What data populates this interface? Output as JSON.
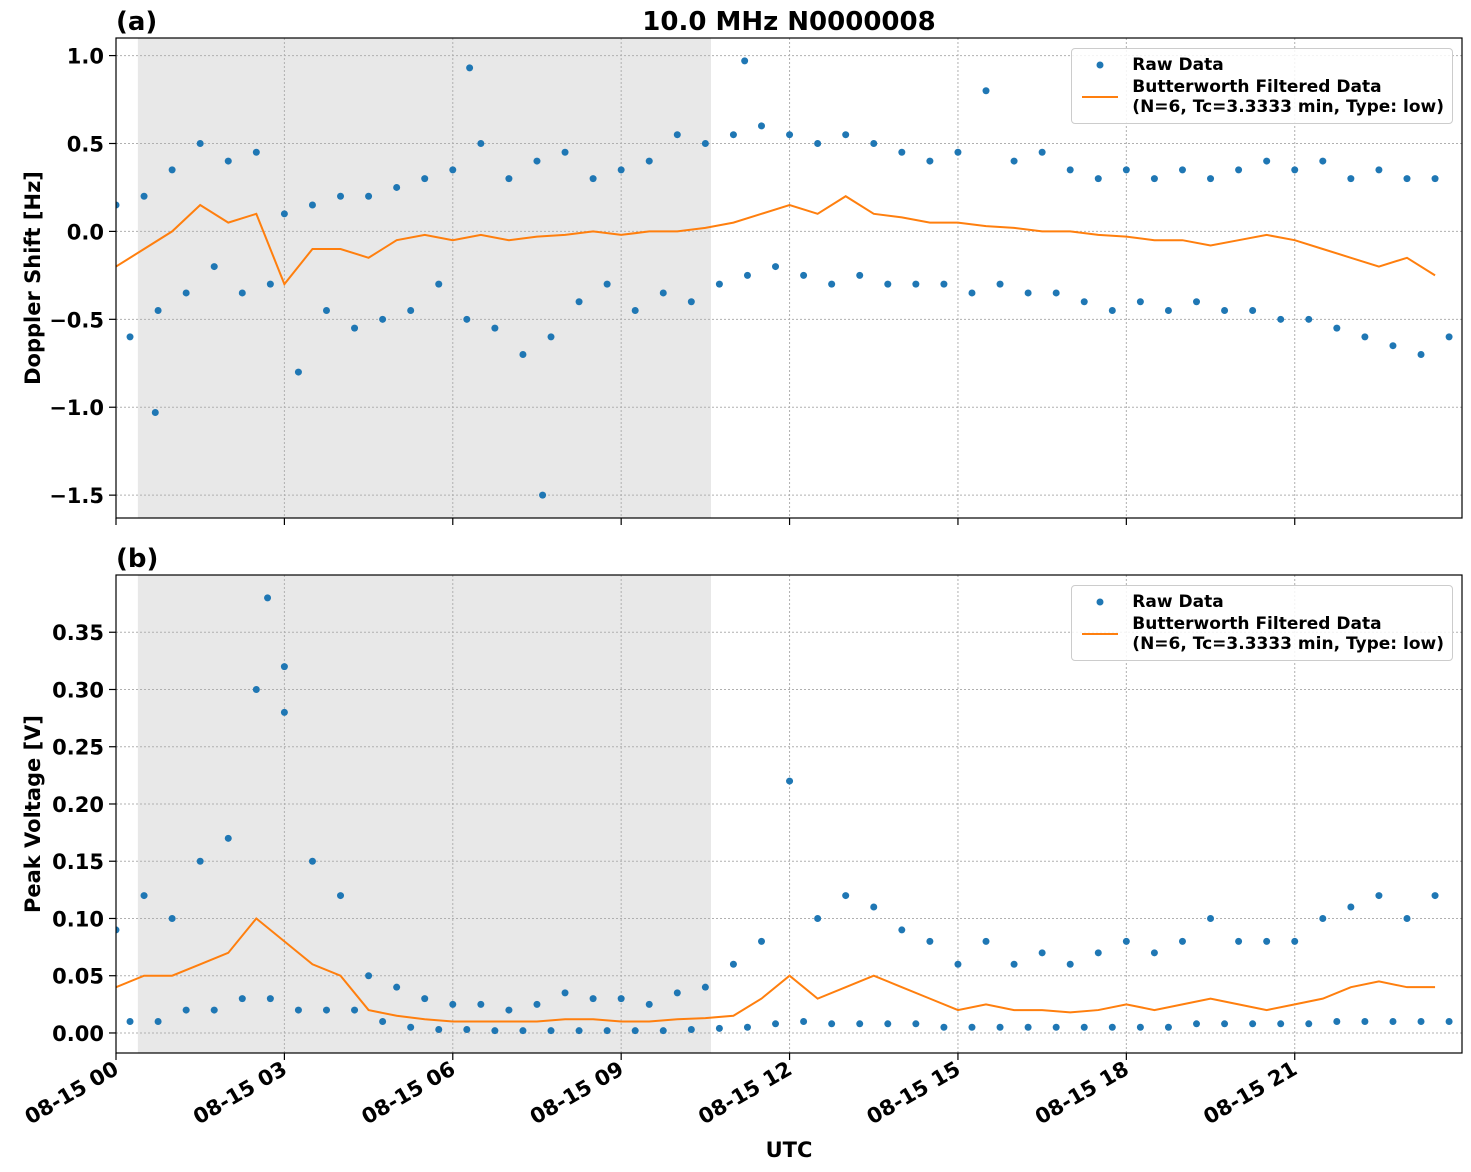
{
  "chart_data": [
    {
      "type": "scatter",
      "panel_label": "(a)",
      "title": "10.0 MHz N0000008",
      "ylabel": "Doppler Shift [Hz]",
      "xlim": [
        0,
        23.98
      ],
      "ylim": [
        -1.63,
        1.1
      ],
      "grid": true,
      "xticklabels": false,
      "xticks": [
        0,
        3,
        6,
        9,
        12,
        15,
        18,
        21
      ],
      "yticks": [
        {
          "value": -1.5,
          "label": "−1.5"
        },
        {
          "value": -1.0,
          "label": "−1.0"
        },
        {
          "value": -0.5,
          "label": "−0.5"
        },
        {
          "value": 0,
          "label": "0.0"
        },
        0.5,
        {
          "value": 1.0,
          "label": "1.0"
        }
      ],
      "shade": [
        0.39,
        10.6
      ],
      "shade_color": "#e8e8e8",
      "legend": "upper right",
      "series": [
        {
          "name": "Raw Data",
          "type": "scatter",
          "color": "#1f77b4",
          "x": [
            0,
            0.25,
            0.5,
            0.75,
            1,
            1.25,
            1.5,
            1.75,
            2,
            2.25,
            2.5,
            2.75,
            3,
            3.25,
            3.5,
            3.75,
            4,
            4.25,
            4.5,
            4.75,
            5,
            5.25,
            5.5,
            5.75,
            6,
            6.25,
            6.5,
            6.75,
            7,
            7.25,
            7.5,
            7.75,
            8,
            8.25,
            8.5,
            8.75,
            9,
            9.25,
            9.5,
            9.75,
            10,
            10.25,
            10.5,
            10.75,
            11,
            11.25,
            11.5,
            11.75,
            12,
            12.25,
            12.5,
            12.75,
            13,
            13.25,
            13.5,
            13.75,
            14,
            14.25,
            14.5,
            14.75,
            15,
            15.25,
            15.5,
            15.75,
            16,
            16.25,
            16.5,
            16.75,
            17,
            17.25,
            17.5,
            17.75,
            18,
            18.25,
            18.5,
            18.75,
            19,
            19.25,
            19.5,
            19.75,
            20,
            20.25,
            20.5,
            20.75,
            21,
            21.25,
            21.5,
            21.75,
            22,
            22.25,
            22.5,
            22.75,
            23,
            23.25,
            23.5,
            23.75,
            6.3,
            7.6,
            11.2,
            0.7
          ],
          "values": [
            0.15,
            -0.6,
            0.2,
            -0.45,
            0.35,
            -0.35,
            0.5,
            -0.2,
            0.4,
            -0.35,
            0.45,
            -0.3,
            0.1,
            -0.8,
            0.15,
            -0.45,
            0.2,
            -0.55,
            0.2,
            -0.5,
            0.25,
            -0.45,
            0.3,
            -0.3,
            0.35,
            -0.5,
            0.5,
            -0.55,
            0.3,
            -0.7,
            0.4,
            -0.6,
            0.45,
            -0.4,
            0.3,
            -0.3,
            0.35,
            -0.45,
            0.4,
            -0.35,
            0.55,
            -0.4,
            0.5,
            -0.3,
            0.55,
            -0.25,
            0.6,
            -0.2,
            0.55,
            -0.25,
            0.5,
            -0.3,
            0.55,
            -0.25,
            0.5,
            -0.3,
            0.45,
            -0.3,
            0.4,
            -0.3,
            0.45,
            -0.35,
            0.8,
            -0.3,
            0.4,
            -0.35,
            0.45,
            -0.35,
            0.35,
            -0.4,
            0.3,
            -0.45,
            0.35,
            -0.4,
            0.3,
            -0.45,
            0.35,
            -0.4,
            0.3,
            -0.45,
            0.35,
            -0.45,
            0.4,
            -0.5,
            0.35,
            -0.5,
            0.4,
            -0.55,
            0.3,
            -0.6,
            0.35,
            -0.65,
            0.3,
            -0.7,
            0.3,
            -0.6,
            0.93,
            -1.5,
            0.97,
            -1.03
          ]
        },
        {
          "name": "Butterworth Filtered Data\n(N=6, Tc=3.3333 min, Type: low)",
          "type": "line",
          "color": "#ff7f0e",
          "x": [
            0,
            0.5,
            1,
            1.5,
            2,
            2.5,
            3,
            3.5,
            4,
            4.5,
            5,
            5.5,
            6,
            6.5,
            7,
            7.5,
            8,
            8.5,
            9,
            9.5,
            10,
            10.5,
            11,
            11.5,
            12,
            12.5,
            13,
            13.5,
            14,
            14.5,
            15,
            15.5,
            16,
            16.5,
            17,
            17.5,
            18,
            18.5,
            19,
            19.5,
            20,
            20.5,
            21,
            21.5,
            22,
            22.5,
            23,
            23.5
          ],
          "values": [
            -0.2,
            -0.1,
            0.0,
            0.15,
            0.05,
            0.1,
            -0.3,
            -0.1,
            -0.1,
            -0.15,
            -0.05,
            -0.02,
            -0.05,
            -0.02,
            -0.05,
            -0.03,
            -0.02,
            0.0,
            -0.02,
            0.0,
            0.0,
            0.02,
            0.05,
            0.1,
            0.15,
            0.1,
            0.2,
            0.1,
            0.08,
            0.05,
            0.05,
            0.03,
            0.02,
            0.0,
            0.0,
            -0.02,
            -0.03,
            -0.05,
            -0.05,
            -0.08,
            -0.05,
            -0.02,
            -0.05,
            -0.1,
            -0.15,
            -0.2,
            -0.15,
            -0.25
          ]
        }
      ]
    },
    {
      "type": "scatter",
      "panel_label": "(b)",
      "ylabel": "Peak Voltage [V]",
      "xlabel": "UTC",
      "xlim": [
        0,
        23.98
      ],
      "ylim": [
        -0.0175,
        0.4
      ],
      "grid": true,
      "xticklabels": true,
      "xticks": [
        {
          "value": 0,
          "label": "08-15 00"
        },
        {
          "value": 3,
          "label": "08-15 03"
        },
        {
          "value": 6,
          "label": "08-15 06"
        },
        {
          "value": 9,
          "label": "08-15 09"
        },
        {
          "value": 12,
          "label": "08-15 12"
        },
        {
          "value": 15,
          "label": "08-15 15"
        },
        {
          "value": 18,
          "label": "08-15 18"
        },
        {
          "value": 21,
          "label": "08-15 21"
        }
      ],
      "yticks": [
        {
          "value": 0,
          "label": "0.00"
        },
        {
          "value": 0.05,
          "label": "0.05"
        },
        {
          "value": 0.1,
          "label": "0.10"
        },
        {
          "value": 0.15,
          "label": "0.15"
        },
        {
          "value": 0.2,
          "label": "0.20"
        },
        {
          "value": 0.25,
          "label": "0.25"
        },
        {
          "value": 0.3,
          "label": "0.30"
        },
        {
          "value": 0.35,
          "label": "0.35"
        }
      ],
      "shade": [
        0.39,
        10.6
      ],
      "shade_color": "#e8e8e8",
      "legend": "upper right",
      "series": [
        {
          "name": "Raw Data",
          "type": "scatter",
          "color": "#1f77b4",
          "x": [
            0,
            0.25,
            0.5,
            0.75,
            1,
            1.25,
            1.5,
            1.75,
            2,
            2.25,
            2.5,
            2.75,
            3,
            3.25,
            3.5,
            3.75,
            4,
            4.25,
            4.5,
            4.75,
            5,
            5.25,
            5.5,
            5.75,
            6,
            6.25,
            6.5,
            6.75,
            7,
            7.25,
            7.5,
            7.75,
            8,
            8.25,
            8.5,
            8.75,
            9,
            9.25,
            9.5,
            9.75,
            10,
            10.25,
            10.5,
            10.75,
            11,
            11.25,
            11.5,
            11.75,
            12,
            12.25,
            12.5,
            12.75,
            13,
            13.25,
            13.5,
            13.75,
            14,
            14.25,
            14.5,
            14.75,
            15,
            15.25,
            15.5,
            15.75,
            16,
            16.25,
            16.5,
            16.75,
            17,
            17.25,
            17.5,
            17.75,
            18,
            18.25,
            18.5,
            18.75,
            19,
            19.25,
            19.5,
            19.75,
            20,
            20.25,
            20.5,
            20.75,
            21,
            21.25,
            21.5,
            21.75,
            22,
            22.25,
            22.5,
            22.75,
            23,
            23.25,
            23.5,
            23.75,
            2.7,
            3.0
          ],
          "values": [
            0.09,
            0.01,
            0.12,
            0.01,
            0.1,
            0.02,
            0.15,
            0.02,
            0.17,
            0.03,
            0.3,
            0.03,
            0.28,
            0.02,
            0.15,
            0.02,
            0.12,
            0.02,
            0.05,
            0.01,
            0.04,
            0.005,
            0.03,
            0.003,
            0.025,
            0.003,
            0.025,
            0.002,
            0.02,
            0.002,
            0.025,
            0.002,
            0.035,
            0.002,
            0.03,
            0.002,
            0.03,
            0.002,
            0.025,
            0.002,
            0.035,
            0.003,
            0.04,
            0.004,
            0.06,
            0.005,
            0.08,
            0.008,
            0.22,
            0.01,
            0.1,
            0.008,
            0.12,
            0.008,
            0.11,
            0.008,
            0.09,
            0.008,
            0.08,
            0.005,
            0.06,
            0.005,
            0.08,
            0.005,
            0.06,
            0.005,
            0.07,
            0.005,
            0.06,
            0.005,
            0.07,
            0.005,
            0.08,
            0.005,
            0.07,
            0.005,
            0.08,
            0.008,
            0.1,
            0.008,
            0.08,
            0.008,
            0.08,
            0.008,
            0.08,
            0.008,
            0.1,
            0.01,
            0.11,
            0.01,
            0.12,
            0.01,
            0.1,
            0.01,
            0.12,
            0.01,
            0.38,
            0.32
          ]
        },
        {
          "name": "Butterworth Filtered Data\n(N=6, Tc=3.3333 min, Type: low)",
          "type": "line",
          "color": "#ff7f0e",
          "x": [
            0,
            0.5,
            1,
            1.5,
            2,
            2.5,
            3,
            3.5,
            4,
            4.5,
            5,
            5.5,
            6,
            6.5,
            7,
            7.5,
            8,
            8.5,
            9,
            9.5,
            10,
            10.5,
            11,
            11.5,
            12,
            12.5,
            13,
            13.5,
            14,
            14.5,
            15,
            15.5,
            16,
            16.5,
            17,
            17.5,
            18,
            18.5,
            19,
            19.5,
            20,
            20.5,
            21,
            21.5,
            22,
            22.5,
            23,
            23.5
          ],
          "values": [
            0.04,
            0.05,
            0.05,
            0.06,
            0.07,
            0.1,
            0.08,
            0.06,
            0.05,
            0.02,
            0.015,
            0.012,
            0.01,
            0.01,
            0.01,
            0.01,
            0.012,
            0.012,
            0.01,
            0.01,
            0.012,
            0.013,
            0.015,
            0.03,
            0.05,
            0.03,
            0.04,
            0.05,
            0.04,
            0.03,
            0.02,
            0.025,
            0.02,
            0.02,
            0.018,
            0.02,
            0.025,
            0.02,
            0.025,
            0.03,
            0.025,
            0.02,
            0.025,
            0.03,
            0.04,
            0.045,
            0.04,
            0.04
          ]
        }
      ]
    }
  ]
}
